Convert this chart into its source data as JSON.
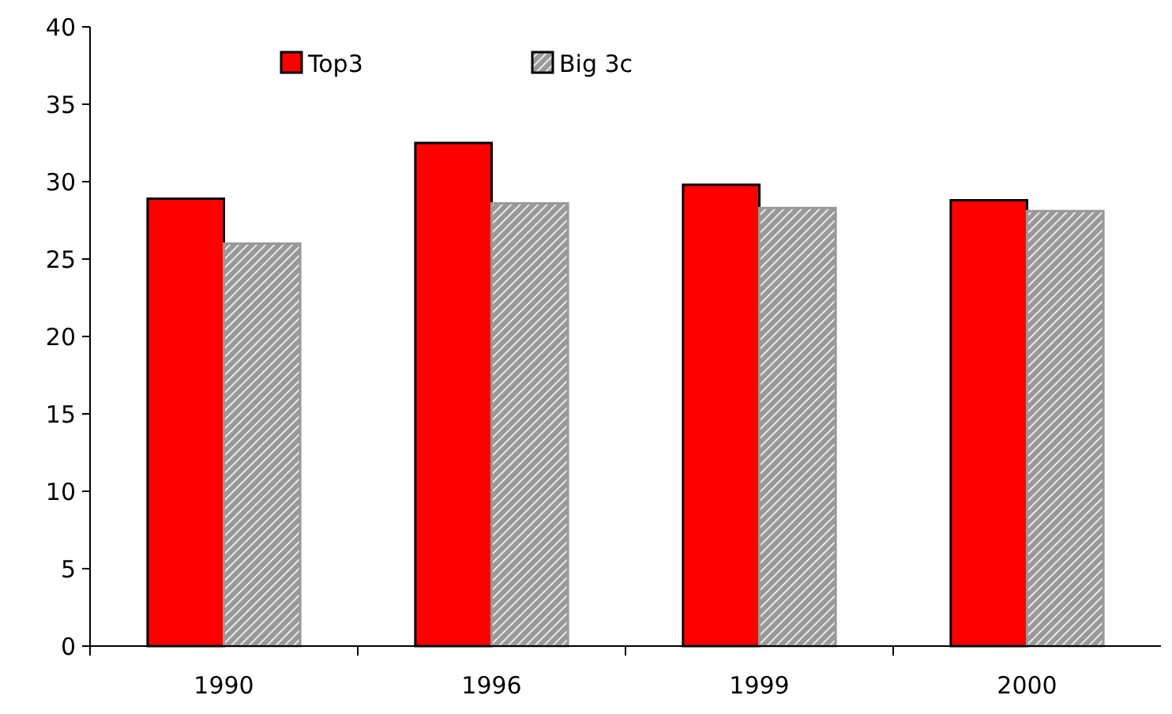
{
  "chart_data": {
    "type": "bar",
    "categories": [
      "1990",
      "1996",
      "1999",
      "2000"
    ],
    "series": [
      {
        "name": "Top3",
        "color": "#ff0000",
        "values": [
          28.9,
          32.5,
          29.8,
          28.8
        ]
      },
      {
        "name": "Big 3c",
        "color": "#999999",
        "values": [
          26.0,
          28.6,
          28.3,
          28.1
        ]
      }
    ],
    "ylim": [
      0,
      40
    ],
    "yticks": [
      0,
      5,
      10,
      15,
      20,
      25,
      30,
      35,
      40
    ],
    "grid": false,
    "legend": "top"
  }
}
